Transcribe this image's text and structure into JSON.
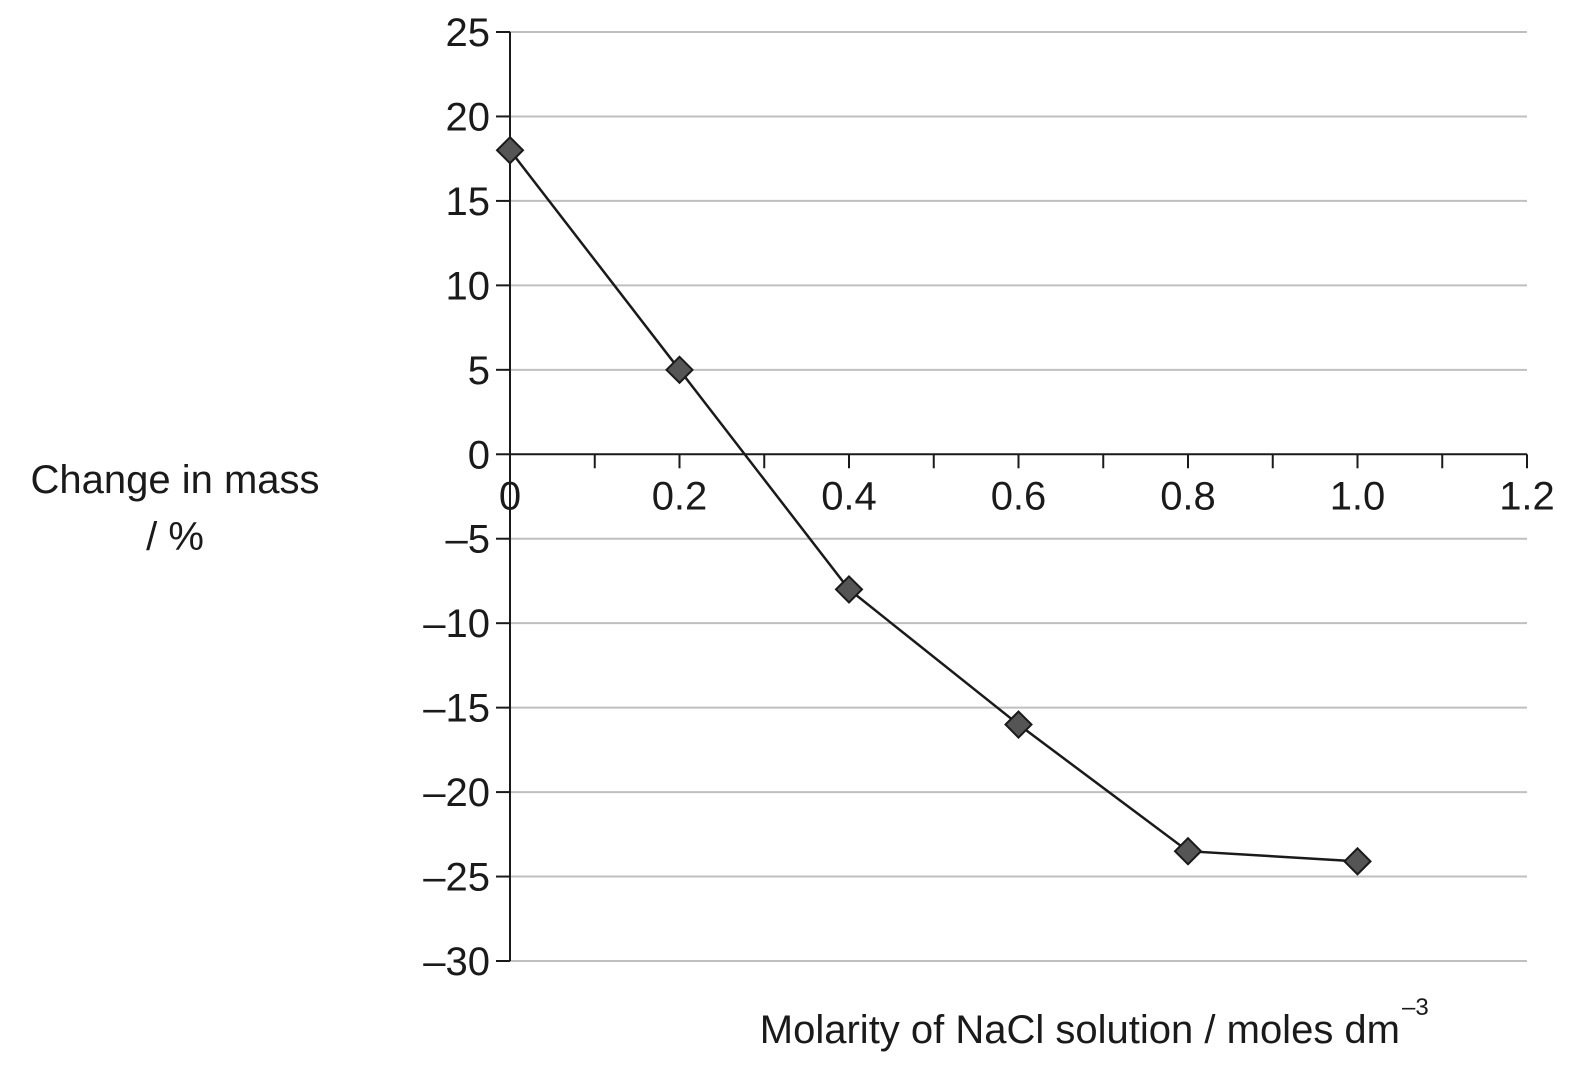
{
  "chart_data": {
    "type": "line",
    "ylabel_line1": "Change in mass",
    "ylabel_line2": "/ %",
    "xlabel": "Molarity of NaCl solution / moles dm",
    "xlabel_superscript": "–3",
    "xlim": [
      0,
      1.2
    ],
    "ylim": [
      -30,
      25
    ],
    "x_ticks": [
      0,
      0.2,
      0.4,
      0.6,
      0.8,
      1.0,
      1.2
    ],
    "x_tick_labels": [
      "0",
      "0.2",
      "0.4",
      "0.6",
      "0.8",
      "1.0",
      "1.2"
    ],
    "x_minor_step": 0.1,
    "y_ticks": [
      25,
      20,
      15,
      10,
      5,
      0,
      -5,
      -10,
      -15,
      -20,
      -25,
      -30
    ],
    "y_tick_labels": [
      "25",
      "20",
      "15",
      "10",
      "5",
      "0",
      "–5",
      "–10",
      "–15",
      "–20",
      "–25",
      "–30"
    ],
    "grid": "horizontal",
    "marker": "diamond",
    "colors": {
      "line": "#1a1a1a",
      "marker_fill": "#555555",
      "grid": "#bfbfbf",
      "axis": "#1a1a1a"
    },
    "series": [
      {
        "x": [
          0,
          0.2,
          0.4,
          0.6,
          0.8,
          1.0
        ],
        "y": [
          18,
          5,
          -8,
          -16,
          -23.5,
          -24.1
        ]
      }
    ]
  }
}
